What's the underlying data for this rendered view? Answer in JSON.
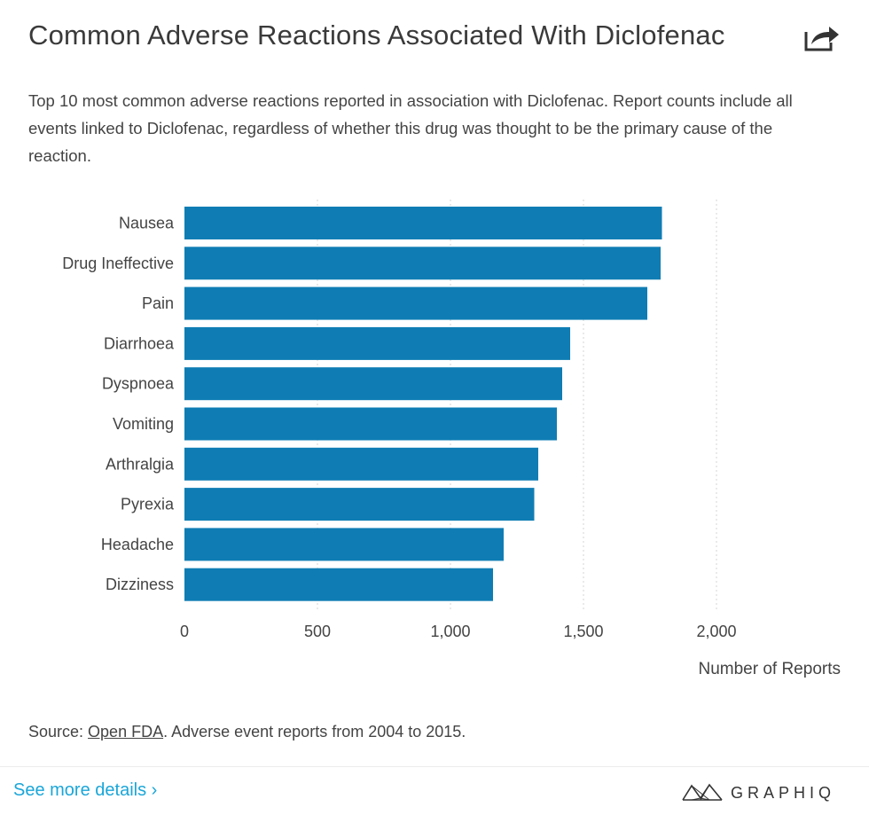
{
  "header": {
    "title": "Common Adverse Reactions Associated With Diclofenac",
    "share_icon": "share-icon"
  },
  "description": "Top 10 most common adverse reactions reported in association with Diclofenac. Report counts include all events linked to Diclofenac, regardless of whether this drug was thought to be the primary cause of the reaction.",
  "chart_data": {
    "type": "bar",
    "orientation": "horizontal",
    "title": "Common Adverse Reactions Associated With Diclofenac",
    "categories": [
      "Nausea",
      "Drug Ineffective",
      "Pain",
      "Diarrhoea",
      "Dyspnoea",
      "Vomiting",
      "Arthralgia",
      "Pyrexia",
      "Headache",
      "Dizziness"
    ],
    "values": [
      1795,
      1790,
      1740,
      1450,
      1420,
      1400,
      1330,
      1315,
      1200,
      1160
    ],
    "xlabel": "Number of Reports",
    "ylabel": "",
    "xlim": [
      0,
      2450
    ],
    "xticks": [
      0,
      500,
      1000,
      1500,
      2000
    ],
    "xtick_labels": [
      "0",
      "500",
      "1,000",
      "1,500",
      "2,000"
    ],
    "grid": true,
    "bar_color": "#0f7db4"
  },
  "footer": {
    "source_prefix": "Source: ",
    "source_link": "Open FDA",
    "source_suffix": ". Adverse event reports from 2004 to 2015.",
    "more_link": "See more details ›",
    "brand": "GRAPHIQ",
    "link_color": "#1aa6d8"
  }
}
